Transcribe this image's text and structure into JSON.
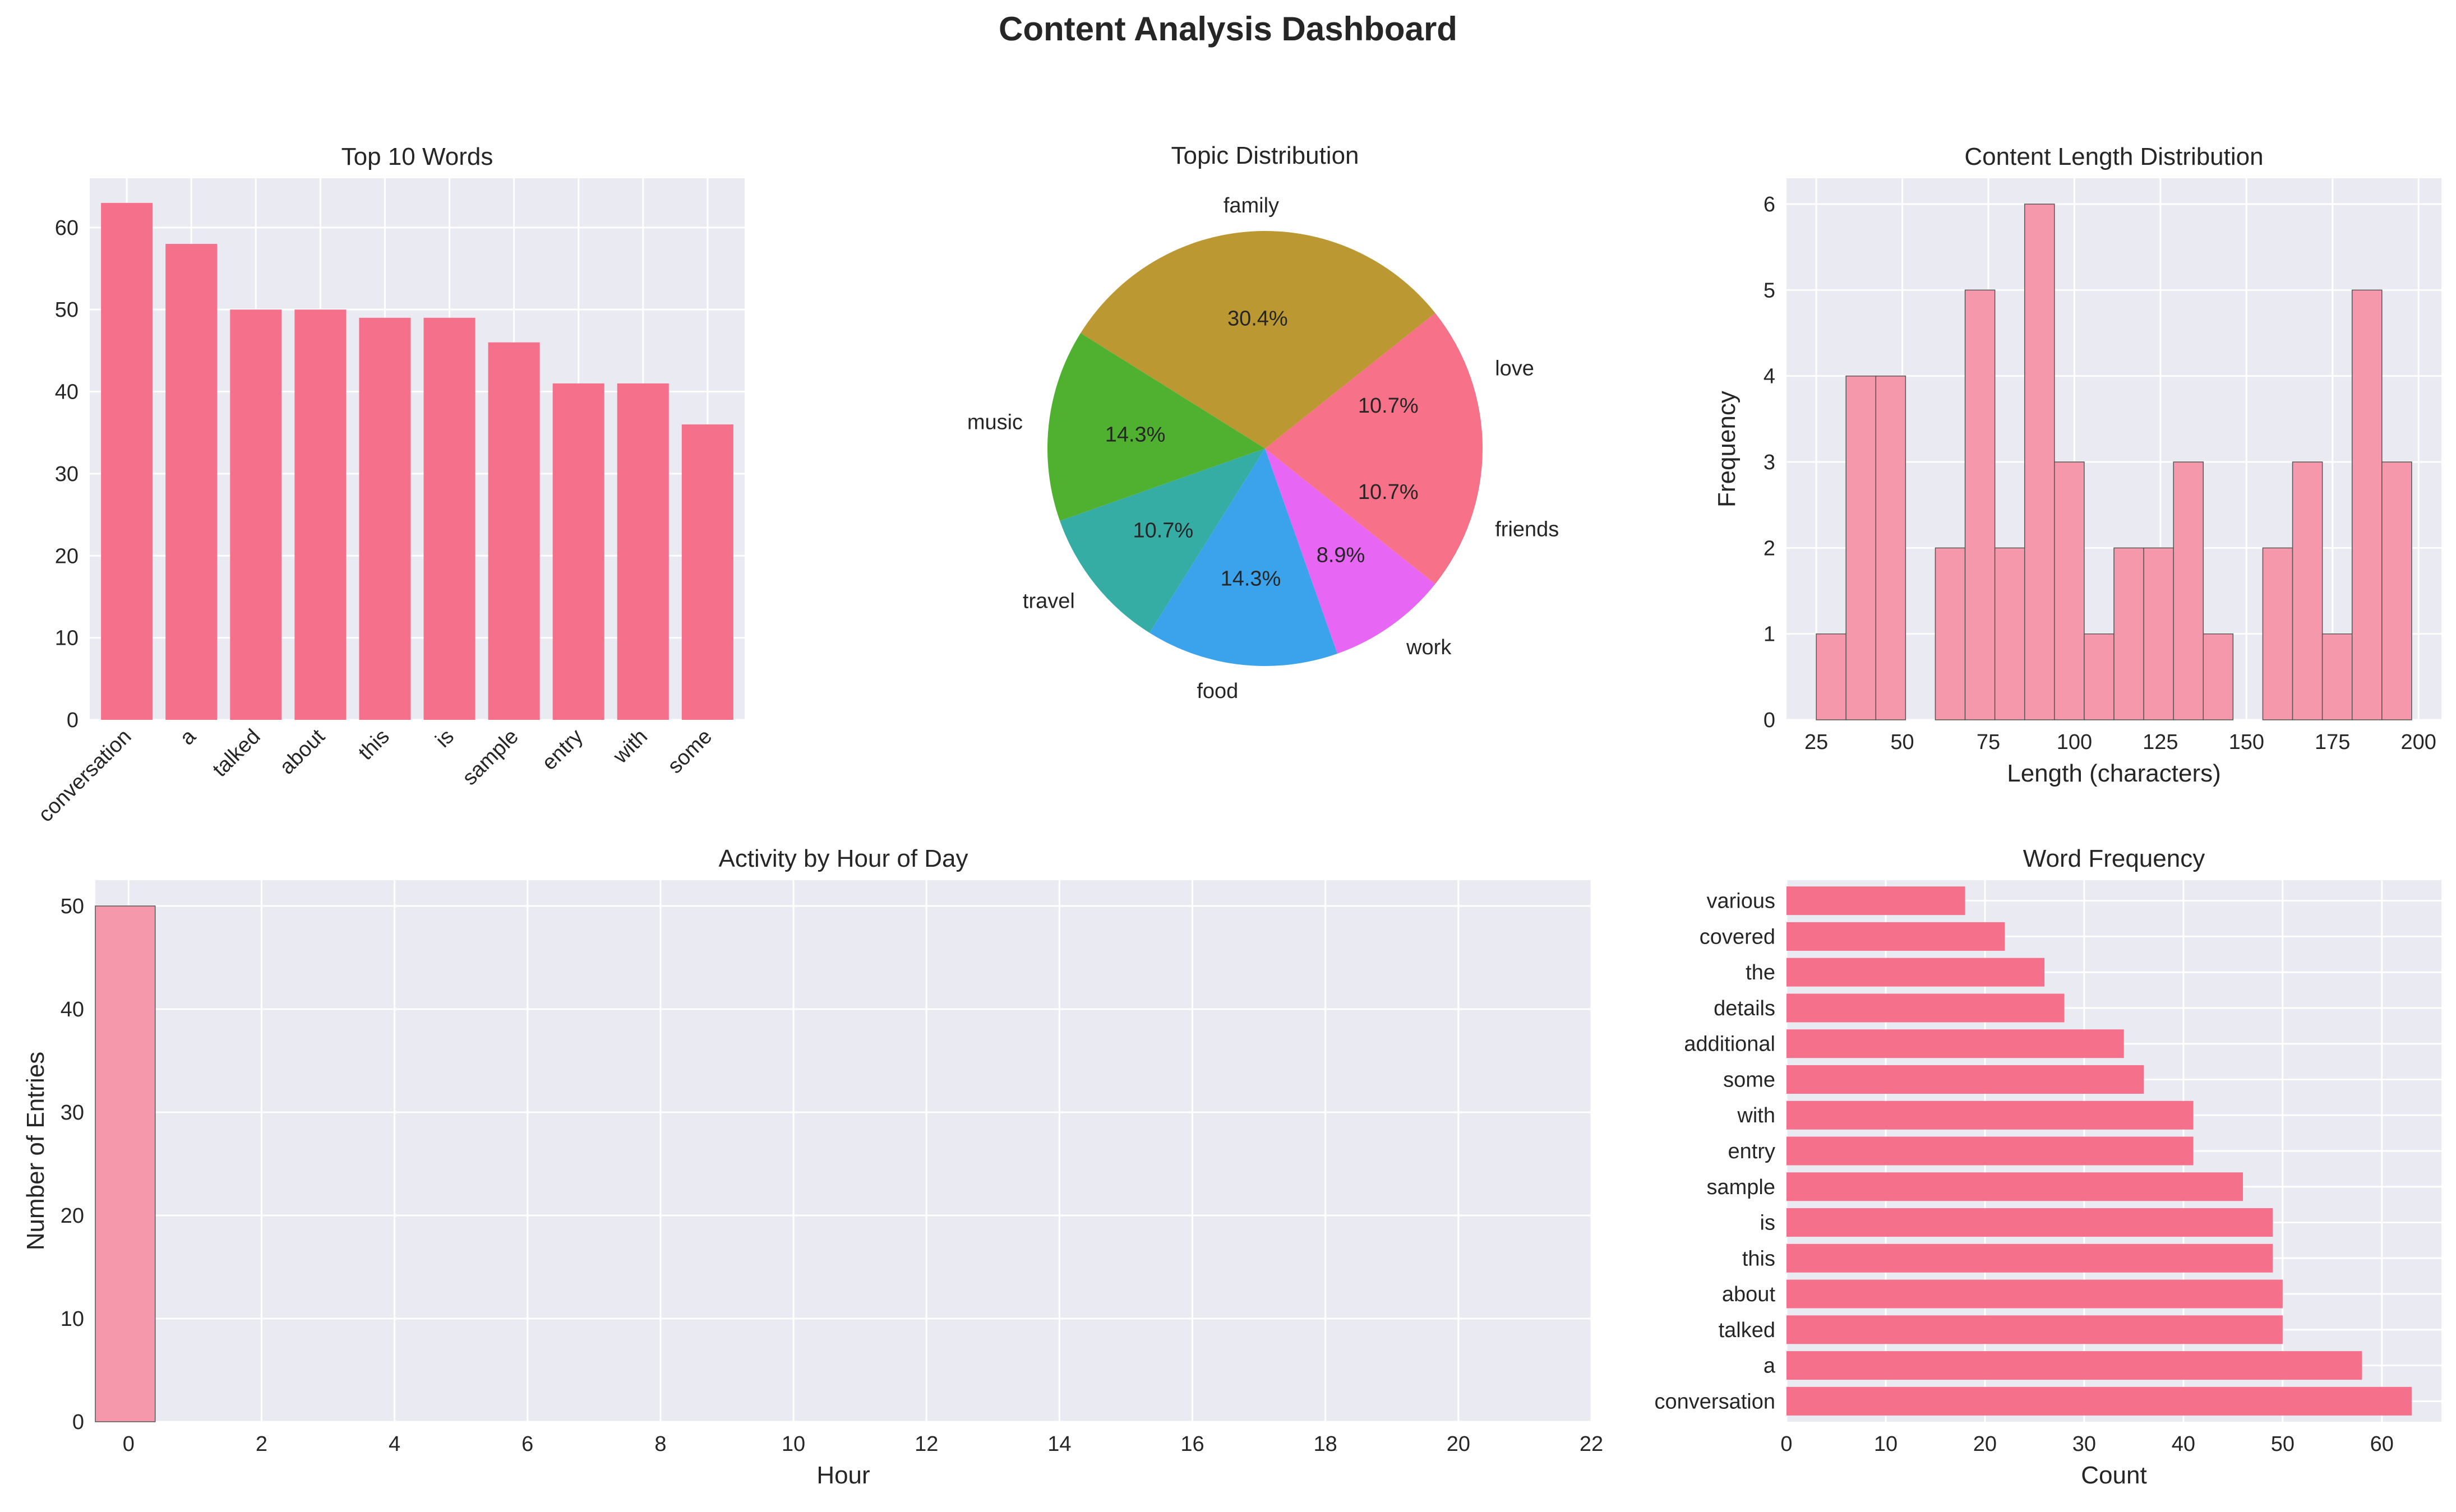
{
  "title": "Content Analysis Dashboard",
  "colors": {
    "panel_bg": "#eaeaf2",
    "grid": "#ffffff",
    "bar": "#f5708b",
    "bar_alpha": "#f598ab",
    "text": "#262626"
  },
  "chart_data": [
    {
      "id": "top10",
      "type": "bar",
      "title": "Top 10 Words",
      "categories": [
        "conversation",
        "a",
        "talked",
        "about",
        "this",
        "is",
        "sample",
        "entry",
        "with",
        "some"
      ],
      "values": [
        63,
        58,
        50,
        50,
        49,
        49,
        46,
        41,
        41,
        36
      ],
      "xlabel": "",
      "ylabel": "",
      "ylim": [
        0,
        66
      ],
      "yticks": [
        "0",
        "10",
        "20",
        "30",
        "40",
        "50",
        "60"
      ],
      "grid": true
    },
    {
      "id": "topics",
      "type": "pie",
      "title": "Topic Distribution",
      "labels": [
        "love",
        "family",
        "music",
        "travel",
        "food",
        "work",
        "friends"
      ],
      "values": [
        10.7,
        30.4,
        14.3,
        10.7,
        14.3,
        8.9,
        10.7
      ],
      "pct_labels": [
        "10.7%",
        "30.4%",
        "14.3%",
        "10.7%",
        "14.3%",
        "8.9%",
        "10.7%"
      ],
      "colors": [
        "#f77189",
        "#bb9832",
        "#50b131",
        "#36ada4",
        "#3ba3ec",
        "#e866f4",
        "#f77189"
      ]
    },
    {
      "id": "lengths",
      "type": "bar",
      "subtype": "histogram",
      "title": "Content Length Distribution",
      "xlabel": "Length (characters)",
      "ylabel": "Frequency",
      "bin_edges": [
        25,
        33.65,
        42.3,
        50.95,
        59.6,
        68.25,
        76.9,
        85.55,
        94.2,
        102.85,
        111.5,
        120.15,
        128.8,
        137.45,
        146.1,
        154.75,
        163.4,
        172.05,
        180.7,
        189.35,
        198
      ],
      "counts": [
        1,
        4,
        4,
        0,
        2,
        5,
        2,
        6,
        3,
        1,
        2,
        2,
        3,
        1,
        0,
        2,
        3,
        1,
        5,
        3
      ],
      "xlim": [
        16.35,
        206.65
      ],
      "ylim": [
        0,
        6.3
      ],
      "xticks": [
        "25",
        "50",
        "75",
        "100",
        "125",
        "150",
        "175",
        "200"
      ],
      "xtick_values": [
        25,
        50,
        75,
        100,
        125,
        150,
        175,
        200
      ],
      "yticks": [
        "0",
        "1",
        "2",
        "3",
        "4",
        "5",
        "6"
      ],
      "grid": true
    },
    {
      "id": "hours",
      "type": "bar",
      "subtype": "histogram",
      "title": "Activity by Hour of Day",
      "xlabel": "Hour",
      "ylabel": "Number of Entries",
      "bins": [
        {
          "x0": -0.5,
          "x1": 0.4,
          "count": 50
        }
      ],
      "xlim": [
        -0.5,
        22
      ],
      "ylim": [
        0,
        52.5
      ],
      "xticks": [
        "0",
        "2",
        "4",
        "6",
        "8",
        "10",
        "12",
        "14",
        "16",
        "18",
        "20",
        "22"
      ],
      "xtick_values": [
        0,
        2,
        4,
        6,
        8,
        10,
        12,
        14,
        16,
        18,
        20,
        22
      ],
      "yticks": [
        "0",
        "10",
        "20",
        "30",
        "40",
        "50"
      ],
      "grid": true
    },
    {
      "id": "wordfreq",
      "type": "bar",
      "subtype": "horizontal",
      "title": "Word Frequency",
      "xlabel": "Count",
      "ylabel": "",
      "categories": [
        "conversation",
        "a",
        "talked",
        "about",
        "this",
        "is",
        "sample",
        "entry",
        "with",
        "some",
        "additional",
        "details",
        "the",
        "covered",
        "various"
      ],
      "values": [
        63,
        58,
        50,
        50,
        49,
        49,
        46,
        41,
        41,
        36,
        34,
        28,
        26,
        22,
        18
      ],
      "xlim": [
        0,
        66
      ],
      "xticks": [
        "0",
        "10",
        "20",
        "30",
        "40",
        "50",
        "60"
      ],
      "grid": true
    }
  ]
}
